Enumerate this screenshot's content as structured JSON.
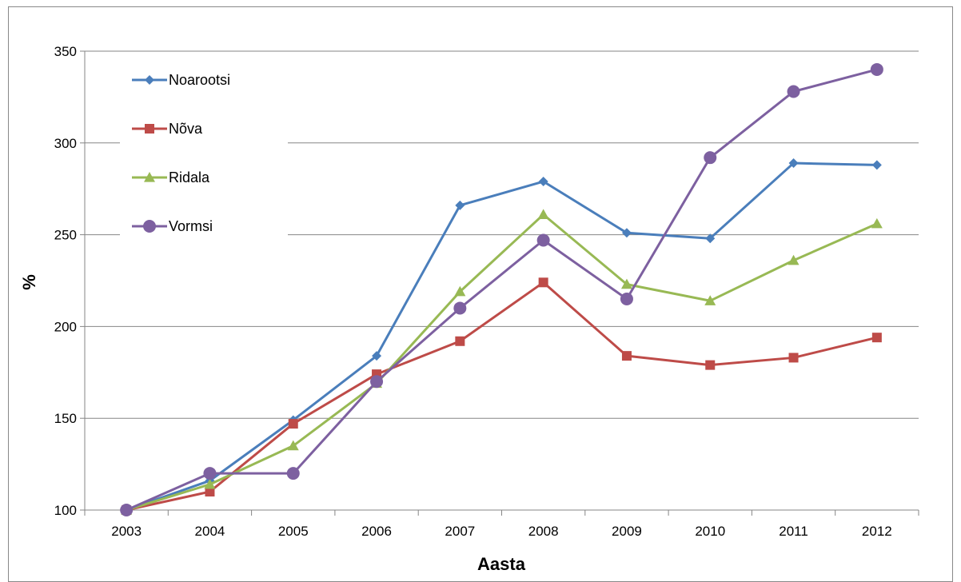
{
  "chart_data": {
    "type": "line",
    "xlabel": "Aasta",
    "ylabel": "%",
    "categories": [
      "2003",
      "2004",
      "2005",
      "2006",
      "2007",
      "2008",
      "2009",
      "2010",
      "2011",
      "2012"
    ],
    "ylim": [
      100,
      350
    ],
    "yticks": [
      100,
      150,
      200,
      250,
      300,
      350
    ],
    "grid": "horizontal",
    "legend": "top-left",
    "series": [
      {
        "name": "Noarootsi",
        "color": "#4A7EBB",
        "marker": "diamond",
        "values": [
          100,
          116,
          149,
          184,
          266,
          279,
          251,
          248,
          289,
          288
        ]
      },
      {
        "name": "Nõva",
        "color": "#BE4B48",
        "marker": "square",
        "values": [
          100,
          110,
          147,
          174,
          192,
          224,
          184,
          179,
          183,
          194
        ]
      },
      {
        "name": "Ridala",
        "color": "#98B954",
        "marker": "triangle",
        "values": [
          100,
          114,
          135,
          169,
          219,
          261,
          223,
          214,
          236,
          256
        ]
      },
      {
        "name": "Vormsi",
        "color": "#7D60A0",
        "marker": "circle",
        "values": [
          100,
          120,
          120,
          170,
          210,
          247,
          215,
          292,
          328,
          340
        ]
      }
    ]
  }
}
